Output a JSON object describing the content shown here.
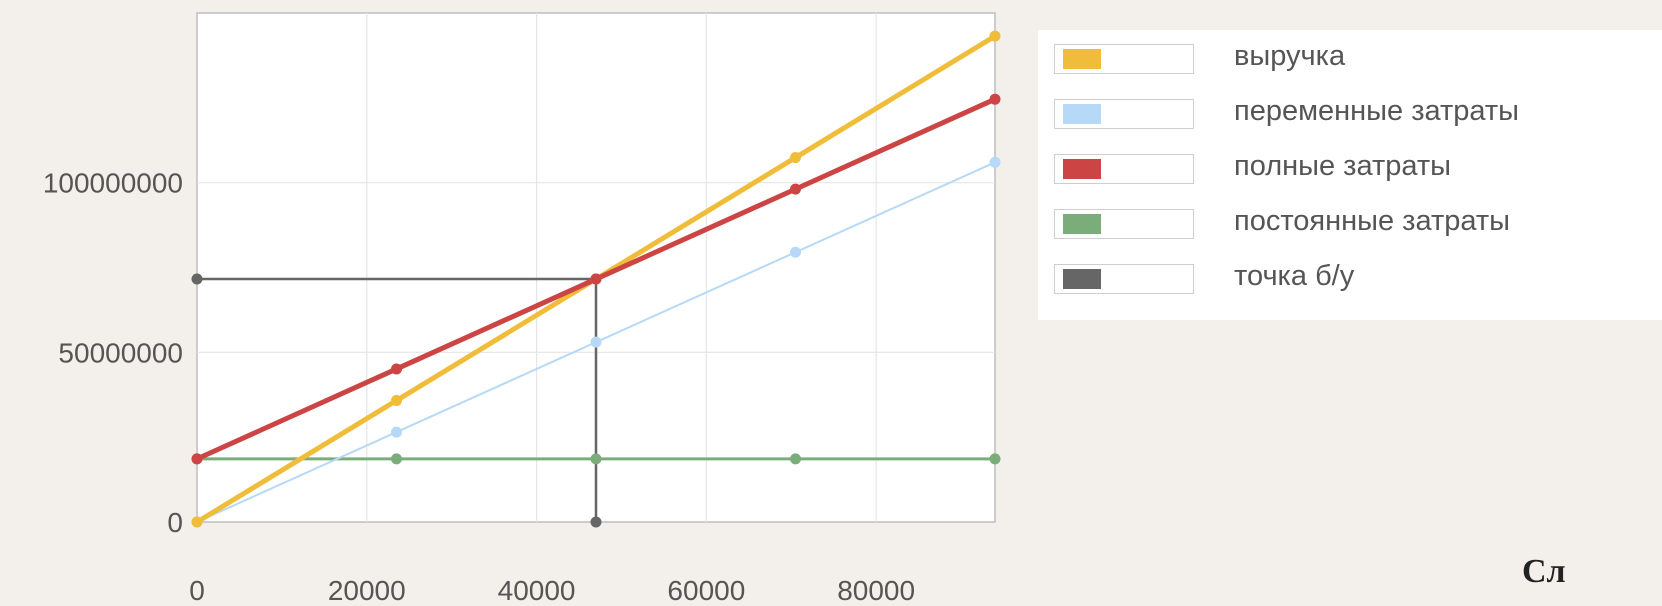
{
  "chart_data": {
    "type": "line",
    "x": [
      0,
      23500,
      47000,
      70500,
      94000
    ],
    "xticks": [
      "0",
      "20000",
      "40000",
      "60000",
      "80000"
    ],
    "xtick_values": [
      0,
      20000,
      40000,
      60000,
      80000
    ],
    "yticks": [
      "0",
      "50000000",
      "100000000"
    ],
    "ytick_values": [
      0,
      50000000,
      100000000
    ],
    "xlim": [
      0,
      94000
    ],
    "ylim": [
      0,
      150000000
    ],
    "grid": true,
    "legend_position": "right",
    "series": [
      {
        "name": "выручка",
        "color": "#f0bd3a",
        "values": [
          0,
          35800000,
          71600000,
          107400000,
          143200000
        ]
      },
      {
        "name": "переменные затраты",
        "color": "#b6d9f7",
        "values": [
          0,
          26500000,
          53000000,
          79500000,
          106000000
        ]
      },
      {
        "name": "полные затраты",
        "color": "#cc4444",
        "values": [
          18600000,
          45100000,
          71600000,
          98100000,
          124600000
        ]
      },
      {
        "name": "постоянные затраты",
        "color": "#7aad79",
        "values": [
          18600000,
          18600000,
          18600000,
          18600000,
          18600000
        ]
      }
    ],
    "breakeven": {
      "name": "точка б/у",
      "color": "#666666",
      "x": 47000,
      "y": 71600000
    }
  },
  "legend": [
    {
      "label": "выручка",
      "color": "#f0bd3a"
    },
    {
      "label": "переменные затраты",
      "color": "#b6d9f7"
    },
    {
      "label": "полные затраты",
      "color": "#cc4444"
    },
    {
      "label": "постоянные затраты",
      "color": "#7aad79"
    },
    {
      "label": "точка б/у",
      "color": "#666666"
    }
  ],
  "corner_text": "Сл"
}
